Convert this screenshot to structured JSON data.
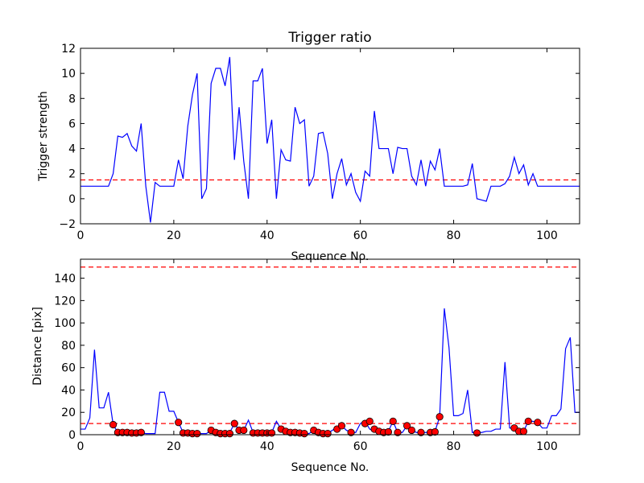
{
  "chart_data": [
    {
      "type": "line",
      "title": "Trigger ratio",
      "xlabel": "Sequence No.",
      "ylabel": "Trigger strength",
      "xlim": [
        0,
        107
      ],
      "ylim": [
        -2,
        12
      ],
      "xticks": [
        0,
        20,
        40,
        60,
        80,
        100
      ],
      "yticks": [
        -2,
        0,
        2,
        4,
        6,
        8,
        10,
        12
      ],
      "grid": false,
      "line_color": "#0000ff",
      "threshold": {
        "value": 1.5,
        "color": "#ff0000",
        "style": "dashed"
      },
      "x": [
        0,
        1,
        2,
        3,
        4,
        5,
        6,
        7,
        8,
        9,
        10,
        11,
        12,
        13,
        14,
        15,
        16,
        17,
        18,
        19,
        20,
        21,
        22,
        23,
        24,
        25,
        26,
        27,
        28,
        29,
        30,
        31,
        32,
        33,
        34,
        35,
        36,
        37,
        38,
        39,
        40,
        41,
        42,
        43,
        44,
        45,
        46,
        47,
        48,
        49,
        50,
        51,
        52,
        53,
        54,
        55,
        56,
        57,
        58,
        59,
        60,
        61,
        62,
        63,
        64,
        65,
        66,
        67,
        68,
        69,
        70,
        71,
        72,
        73,
        74,
        75,
        76,
        77,
        78,
        79,
        80,
        81,
        82,
        83,
        84,
        85,
        86,
        87,
        88,
        89,
        90,
        91,
        92,
        93,
        94,
        95,
        96,
        97,
        98,
        99,
        100,
        101,
        102,
        103,
        104,
        105,
        106,
        107
      ],
      "y": [
        1,
        1,
        1,
        1,
        1,
        1,
        1,
        2,
        5,
        4.9,
        5.2,
        4.2,
        3.8,
        6,
        1,
        -1.9,
        1.3,
        1,
        1,
        1,
        1,
        3.1,
        1.6,
        5.8,
        8.3,
        10,
        0,
        0.8,
        9.2,
        10.4,
        10.4,
        9,
        11.3,
        3.1,
        7.3,
        3,
        0,
        9.4,
        9.4,
        10.4,
        4.4,
        6.3,
        0,
        3.9,
        3.1,
        3,
        7.3,
        6,
        6.3,
        1,
        1.8,
        5.2,
        5.3,
        3.6,
        0,
        2,
        3.2,
        1.1,
        2,
        0.5,
        -0.2,
        2.2,
        1.8,
        7,
        4,
        4,
        4,
        2,
        4.1,
        4,
        4,
        1.8,
        1.1,
        3.1,
        1,
        3,
        2.3,
        4,
        1,
        1,
        1,
        1,
        1,
        1.1,
        2.8,
        0,
        -0.1,
        -0.2,
        1,
        1,
        1,
        1.2,
        1.8,
        3.3,
        2,
        2.7,
        1.1,
        2,
        1,
        1,
        1,
        1,
        1,
        1,
        1,
        1,
        1,
        1
      ]
    },
    {
      "type": "line",
      "title": "",
      "xlabel": "Sequence No.",
      "ylabel": "Distance [pix]",
      "xlim": [
        0,
        107
      ],
      "ylim": [
        0,
        157
      ],
      "xticks": [
        0,
        20,
        40,
        60,
        80,
        100
      ],
      "yticks": [
        0,
        20,
        40,
        60,
        80,
        100,
        120,
        140
      ],
      "grid": false,
      "line_color": "#0000ff",
      "marker_color": "#ff0000",
      "thresholds": [
        {
          "value": 150,
          "color": "#ff0000",
          "style": "dashed"
        },
        {
          "value": 10,
          "color": "#ff0000",
          "style": "dashed"
        }
      ],
      "x": [
        0,
        1,
        2,
        3,
        4,
        5,
        6,
        7,
        8,
        9,
        10,
        11,
        12,
        13,
        14,
        15,
        16,
        17,
        18,
        19,
        20,
        21,
        22,
        23,
        24,
        25,
        26,
        27,
        28,
        29,
        30,
        31,
        32,
        33,
        34,
        35,
        36,
        37,
        38,
        39,
        40,
        41,
        42,
        43,
        44,
        45,
        46,
        47,
        48,
        49,
        50,
        51,
        52,
        53,
        54,
        55,
        56,
        57,
        58,
        59,
        60,
        61,
        62,
        63,
        64,
        65,
        66,
        67,
        68,
        69,
        70,
        71,
        72,
        73,
        74,
        75,
        76,
        77,
        78,
        79,
        80,
        81,
        82,
        83,
        84,
        85,
        86,
        87,
        88,
        89,
        90,
        91,
        92,
        93,
        94,
        95,
        96,
        97,
        98,
        99,
        100,
        101,
        102,
        103,
        104,
        105,
        106,
        107
      ],
      "y": [
        5,
        5,
        15,
        76,
        24,
        24,
        38,
        9,
        2,
        2,
        2,
        2,
        1,
        2,
        1,
        1,
        1,
        38,
        38,
        21,
        21,
        11,
        2,
        2,
        2,
        1,
        1,
        1,
        4,
        2,
        1,
        1,
        2,
        10,
        4,
        4,
        13,
        2,
        2,
        2,
        2,
        2,
        12,
        5,
        3,
        2,
        2,
        2,
        1,
        1,
        4,
        2,
        1,
        1,
        4,
        6,
        8,
        4,
        2,
        2,
        10,
        12,
        5,
        3,
        2,
        3,
        3,
        12,
        2,
        2,
        8,
        4,
        2,
        2,
        2,
        2,
        3,
        16,
        113,
        78,
        17,
        17,
        19,
        40,
        2,
        2,
        2,
        3,
        3,
        5,
        5,
        65,
        6,
        5,
        3,
        3,
        12,
        12,
        11,
        6,
        6,
        17,
        17,
        23,
        77,
        87,
        20,
        20
      ],
      "markers": [
        {
          "x": 7,
          "y": 9
        },
        {
          "x": 8,
          "y": 2
        },
        {
          "x": 9,
          "y": 2
        },
        {
          "x": 10,
          "y": 2
        },
        {
          "x": 11,
          "y": 1.5
        },
        {
          "x": 12,
          "y": 1.5
        },
        {
          "x": 13,
          "y": 2
        },
        {
          "x": 21,
          "y": 11
        },
        {
          "x": 22,
          "y": 1.5
        },
        {
          "x": 23,
          "y": 1.5
        },
        {
          "x": 24,
          "y": 1
        },
        {
          "x": 25,
          "y": 1
        },
        {
          "x": 28,
          "y": 4
        },
        {
          "x": 29,
          "y": 2
        },
        {
          "x": 30,
          "y": 1
        },
        {
          "x": 31,
          "y": 1
        },
        {
          "x": 32,
          "y": 1
        },
        {
          "x": 33,
          "y": 10
        },
        {
          "x": 34,
          "y": 4
        },
        {
          "x": 35,
          "y": 4
        },
        {
          "x": 37,
          "y": 1.5
        },
        {
          "x": 38,
          "y": 1.5
        },
        {
          "x": 39,
          "y": 1.5
        },
        {
          "x": 40,
          "y": 1.5
        },
        {
          "x": 41,
          "y": 1.5
        },
        {
          "x": 43,
          "y": 5
        },
        {
          "x": 44,
          "y": 3
        },
        {
          "x": 45,
          "y": 2
        },
        {
          "x": 46,
          "y": 2
        },
        {
          "x": 47,
          "y": 1.5
        },
        {
          "x": 48,
          "y": 1
        },
        {
          "x": 50,
          "y": 4
        },
        {
          "x": 51,
          "y": 2
        },
        {
          "x": 52,
          "y": 1
        },
        {
          "x": 53,
          "y": 1
        },
        {
          "x": 55,
          "y": 5
        },
        {
          "x": 56,
          "y": 8
        },
        {
          "x": 58,
          "y": 2
        },
        {
          "x": 61,
          "y": 10
        },
        {
          "x": 62,
          "y": 12
        },
        {
          "x": 63,
          "y": 5
        },
        {
          "x": 64,
          "y": 3
        },
        {
          "x": 65,
          "y": 2
        },
        {
          "x": 66,
          "y": 2.5
        },
        {
          "x": 67,
          "y": 12
        },
        {
          "x": 68,
          "y": 2
        },
        {
          "x": 70,
          "y": 8
        },
        {
          "x": 71,
          "y": 4
        },
        {
          "x": 73,
          "y": 2
        },
        {
          "x": 75,
          "y": 2
        },
        {
          "x": 76,
          "y": 2.5
        },
        {
          "x": 77,
          "y": 16
        },
        {
          "x": 85,
          "y": 1.5
        },
        {
          "x": 93,
          "y": 6
        },
        {
          "x": 94,
          "y": 3
        },
        {
          "x": 95,
          "y": 3
        },
        {
          "x": 96,
          "y": 12
        },
        {
          "x": 98,
          "y": 11
        }
      ]
    }
  ]
}
